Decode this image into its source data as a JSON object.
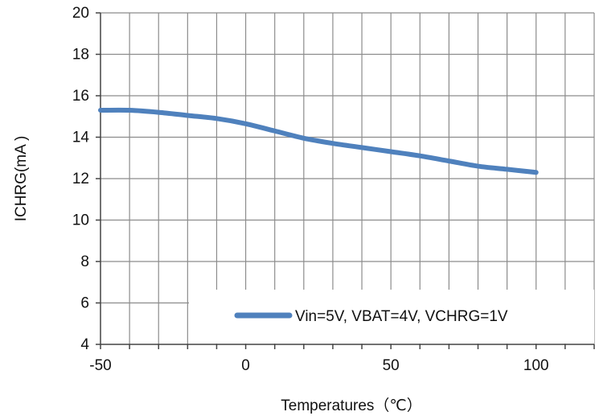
{
  "chart_data": {
    "type": "line",
    "xlabel": "Temperatures（℃）",
    "ylabel": "ICHRG(mA )",
    "xlim": [
      -50,
      120
    ],
    "ylim": [
      4,
      20
    ],
    "x_ticks": [
      -50,
      0,
      50,
      100
    ],
    "y_ticks": [
      4,
      6,
      8,
      10,
      12,
      14,
      16,
      18,
      20
    ],
    "x_grid_step": 10,
    "grid": true,
    "legend_position": "bottom-right",
    "line_color": "#4f81bd",
    "series": [
      {
        "name": "Vin=5V, VBAT=4V, VCHRG=1V",
        "x": [
          -50,
          -40,
          -30,
          -20,
          -10,
          0,
          10,
          20,
          30,
          40,
          50,
          60,
          70,
          80,
          90,
          100
        ],
        "y": [
          15.3,
          15.3,
          15.2,
          15.05,
          14.9,
          14.65,
          14.3,
          13.95,
          13.7,
          13.5,
          13.3,
          13.1,
          12.85,
          12.6,
          12.45,
          12.3
        ]
      }
    ]
  }
}
